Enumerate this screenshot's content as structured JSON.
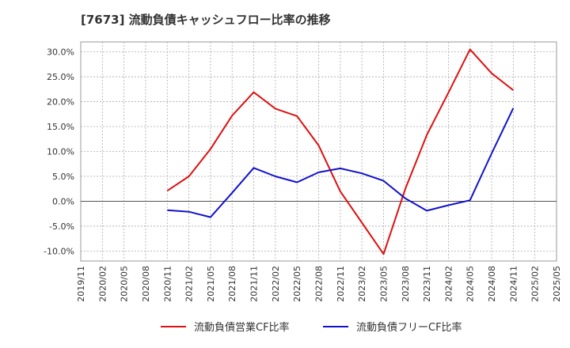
{
  "chart_data": {
    "type": "line",
    "title": "[7673]  流動負債キャッシュフロー比率の推移",
    "x_ticks": [
      "2019/11",
      "2020/02",
      "2020/05",
      "2020/08",
      "2020/11",
      "2021/02",
      "2021/05",
      "2021/08",
      "2021/11",
      "2022/02",
      "2022/05",
      "2022/08",
      "2022/11",
      "2023/02",
      "2023/05",
      "2023/08",
      "2023/11",
      "2024/02",
      "2024/05",
      "2024/08",
      "2024/11",
      "2025/02",
      "2025/05"
    ],
    "y_ticks": [
      "30.0%",
      "25.0%",
      "20.0%",
      "15.0%",
      "10.0%",
      "5.0%",
      "0.0%",
      "-5.0%",
      "-10.0%"
    ],
    "y_tick_values": [
      30,
      25,
      20,
      15,
      10,
      5,
      0,
      -5,
      -10
    ],
    "ylim": [
      -12,
      32
    ],
    "grid": true,
    "series": [
      {
        "name": "流動負債営業CF比率",
        "color": "#dd1111",
        "x": [
          "2020/11",
          "2021/02",
          "2021/05",
          "2021/08",
          "2021/11",
          "2022/02",
          "2022/05",
          "2022/08",
          "2022/11",
          "2023/02",
          "2023/05",
          "2023/08",
          "2023/11",
          "2024/02",
          "2024/05",
          "2024/08",
          "2024/11"
        ],
        "values": [
          2.1,
          5.0,
          10.5,
          17.2,
          21.9,
          18.6,
          17.1,
          11.2,
          2.0,
          -4.3,
          -10.6,
          2.4,
          13.3,
          21.8,
          30.5,
          25.7,
          22.3
        ]
      },
      {
        "name": "流動負債フリーCF比率",
        "color": "#1111cc",
        "x": [
          "2020/11",
          "2021/02",
          "2021/05",
          "2021/08",
          "2021/11",
          "2022/02",
          "2022/05",
          "2022/08",
          "2022/11",
          "2023/02",
          "2023/05",
          "2023/08",
          "2023/11",
          "2024/02",
          "2024/05",
          "2024/08",
          "2024/11"
        ],
        "values": [
          -1.8,
          -2.1,
          -3.2,
          1.7,
          6.7,
          5.0,
          3.8,
          5.8,
          6.6,
          5.6,
          4.1,
          0.6,
          -1.9,
          -0.8,
          0.2,
          9.6,
          18.7
        ]
      }
    ]
  }
}
